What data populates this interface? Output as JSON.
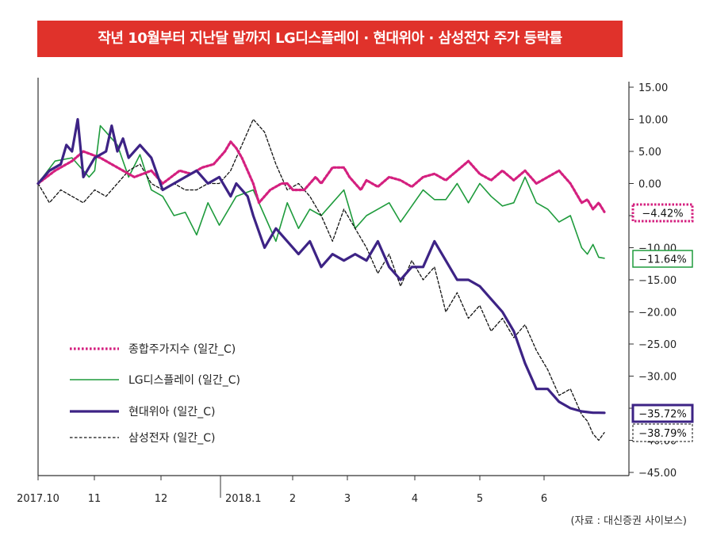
{
  "title": "작년 10월부터 지난달 말까지 LG디스플레이 · 현대위아 · 삼성전자 주가 등락률",
  "source": "(자료 : 대신증권 사이보스)",
  "colors": {
    "banner": "#e0322b",
    "kospi": "#d4207f",
    "lgd": "#1e9b3c",
    "hyundai_wia": "#3d2385",
    "samsung": "#111111"
  },
  "chart_data": {
    "type": "line",
    "title": "작년 10월부터 지난달 말까지 LG디스플레이 · 현대위아 · 삼성전자 주가 등락률",
    "xlabel": "",
    "ylabel": "",
    "x_ticks": [
      "2017.10",
      "11",
      "12",
      "2018.1",
      "2",
      "3",
      "4",
      "5",
      "6"
    ],
    "y_ticks": [
      "15.00",
      "10.00",
      "5.00",
      "0.00",
      "-5.00",
      "-10.00",
      "-15.00",
      "-20.00",
      "-25.00",
      "-30.00",
      "-35.00",
      "-40.00",
      "-45.00"
    ],
    "ylim": [
      -45,
      15
    ],
    "grid": false,
    "legend_position": "lower-left",
    "series": [
      {
        "key": "kospi",
        "name": "종합주가지수 (일간_C)",
        "style": "dotted",
        "final_label": "-4.42%",
        "x": [
          0,
          3,
          6,
          8,
          11,
          13,
          17,
          20,
          22,
          25,
          27,
          29,
          31,
          32,
          33,
          34,
          35,
          36,
          37,
          38,
          39,
          41,
          43,
          44,
          45,
          46,
          47,
          48,
          49,
          50,
          52,
          53,
          54,
          55,
          56,
          57,
          58,
          60,
          62,
          64,
          66,
          68,
          70,
          72,
          74,
          76,
          78,
          80,
          82,
          84,
          86,
          88,
          90,
          92,
          94,
          96,
          97,
          98,
          99,
          100
        ],
        "values": [
          0,
          2,
          3.5,
          5,
          4,
          3,
          1,
          2,
          0,
          2,
          1.5,
          2.5,
          3,
          4,
          5,
          6.5,
          5.5,
          4,
          2,
          0,
          -3,
          -1,
          0,
          0,
          -1,
          -1,
          -1,
          0,
          1,
          0,
          2.5,
          2.5,
          2.5,
          1,
          0,
          -1,
          0.5,
          -0.5,
          1,
          0.5,
          -0.5,
          1,
          1.5,
          0.5,
          2,
          3.5,
          1.5,
          0.5,
          2,
          0.5,
          2,
          0,
          1,
          2,
          0,
          -3,
          -2.5,
          -4,
          -3,
          -4.42
        ]
      },
      {
        "key": "lgd",
        "name": "LG디스플레이 (일간_C)",
        "style": "solid",
        "final_label": "-11.64%",
        "x": [
          0,
          3,
          6,
          9,
          10,
          11,
          12,
          14,
          16,
          18,
          20,
          22,
          24,
          26,
          28,
          30,
          32,
          35,
          38,
          40,
          42,
          44,
          46,
          48,
          50,
          52,
          54,
          56,
          58,
          60,
          62,
          64,
          66,
          68,
          70,
          72,
          74,
          76,
          78,
          80,
          82,
          84,
          86,
          88,
          90,
          92,
          94,
          96,
          97,
          98,
          99,
          100
        ],
        "values": [
          0,
          3.5,
          4,
          1,
          2,
          9,
          8,
          6,
          1,
          4.5,
          -1,
          -2,
          -5,
          -4.5,
          -8,
          -3,
          -6.5,
          -2,
          -1,
          -5,
          -9,
          -3,
          -7,
          -4,
          -5,
          -3,
          -1,
          -7,
          -5,
          -4,
          -3,
          -6,
          -3.5,
          -1,
          -2.5,
          -2.5,
          0,
          -3,
          0,
          -2,
          -3.5,
          -3,
          1,
          -3,
          -4,
          -6,
          -5,
          -10,
          -11,
          -9.5,
          -11.5,
          -11.64
        ]
      },
      {
        "key": "hyundai_wia",
        "name": "현대위아 (일간_C)",
        "style": "solid",
        "final_label": "-35.72%",
        "x": [
          0,
          2,
          4,
          5,
          6,
          7,
          8,
          10,
          12,
          13,
          14,
          15,
          16,
          18,
          20,
          22,
          24,
          26,
          28,
          30,
          32,
          34,
          35,
          36,
          37,
          38,
          40,
          42,
          44,
          46,
          48,
          50,
          52,
          54,
          56,
          58,
          60,
          62,
          64,
          66,
          68,
          70,
          72,
          74,
          76,
          78,
          80,
          82,
          84,
          86,
          88,
          90,
          92,
          94,
          96,
          97,
          98,
          99,
          100
        ],
        "values": [
          0,
          2,
          3,
          6,
          5,
          10,
          1,
          4,
          5,
          9,
          5,
          7,
          4,
          6,
          4,
          -1,
          0,
          1,
          2,
          0,
          1,
          -2,
          0,
          -1,
          -2,
          -5,
          -10,
          -7,
          -9,
          -11,
          -9,
          -13,
          -11,
          -12,
          -11,
          -12,
          -9,
          -13,
          -15,
          -13,
          -13,
          -9,
          -12,
          -15,
          -15,
          -16,
          -18,
          -20,
          -23,
          -28,
          -32,
          -32,
          -34,
          -35,
          -35.5,
          -35.6,
          -35.7,
          -35.7,
          -35.72
        ]
      },
      {
        "key": "samsung",
        "name": "삼성전자 (일간_C)",
        "style": "dashed",
        "final_label": "-38.79%",
        "x": [
          0,
          2,
          4,
          6,
          8,
          10,
          12,
          14,
          16,
          18,
          20,
          22,
          24,
          26,
          28,
          30,
          32,
          34,
          36,
          38,
          40,
          42,
          44,
          46,
          48,
          50,
          52,
          54,
          56,
          58,
          60,
          62,
          64,
          66,
          68,
          70,
          72,
          74,
          76,
          78,
          80,
          82,
          84,
          86,
          88,
          90,
          92,
          94,
          96,
          97,
          98,
          99,
          100
        ],
        "values": [
          0,
          -3,
          -1,
          -2,
          -3,
          -1,
          -2,
          0,
          2,
          3,
          0,
          -1,
          0,
          -1,
          -1,
          0,
          0,
          2,
          6,
          10,
          8,
          3,
          -1,
          0,
          -2,
          -5,
          -9,
          -4,
          -7,
          -10,
          -14,
          -11,
          -16,
          -12,
          -15,
          -13,
          -20,
          -17,
          -21,
          -19,
          -23,
          -21,
          -24,
          -22,
          -26,
          -29,
          -33,
          -32,
          -36,
          -37,
          -39,
          -40,
          -38.79
        ]
      }
    ]
  }
}
